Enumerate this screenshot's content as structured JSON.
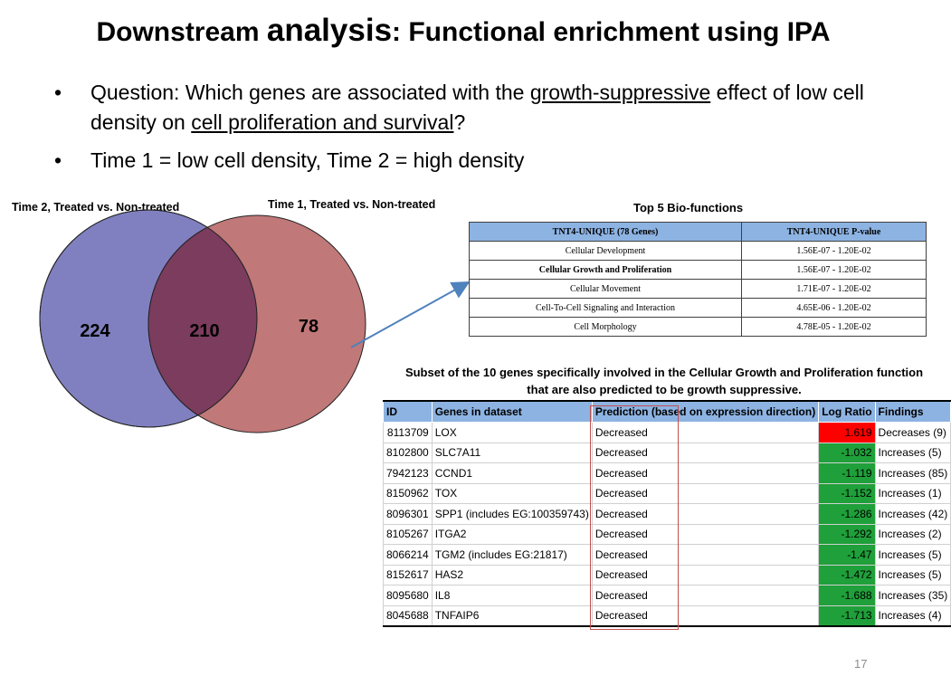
{
  "title": {
    "part1": "Downstream ",
    "part2": "analysis",
    "part3": ": Functional enrichment using IPA"
  },
  "bullets": {
    "b1": {
      "pre": "Question: Which genes are associated with the ",
      "u1": "growth-suppressive",
      "mid": " effect of low cell density on ",
      "u2": "cell proliferation and survival",
      "post": "?"
    },
    "b2": "Time 1 = low cell density, Time 2 = high density",
    "bullet_char": "•"
  },
  "venn": {
    "label_left": "Time 2, Treated vs. Non-treated",
    "label_right": "Time 1, Treated vs. Non-treated",
    "left_only": "224",
    "overlap": "210",
    "right_only": "78",
    "colors": {
      "left": "#8080c0",
      "right": "#c07878",
      "overlap": "#7b3c5e"
    }
  },
  "top5": {
    "caption": "Top 5 Bio-functions",
    "headers": [
      "TNT4-UNIQUE (78 Genes)",
      "TNT4-UNIQUE P-value"
    ],
    "rows": [
      [
        "Cellular Development",
        "1.56E-07 - 1.20E-02"
      ],
      [
        "Cellular Growth and Proliferation",
        "1.56E-07 - 1.20E-02"
      ],
      [
        "Cellular Movement",
        "1.71E-07 - 1.20E-02"
      ],
      [
        "Cell-To-Cell Signaling and Interaction",
        "4.65E-06 - 1.20E-02"
      ],
      [
        "Cell Morphology",
        "4.78E-05 - 1.20E-02"
      ]
    ],
    "bold_row_index": 1
  },
  "subset": {
    "caption": "Subset of the 10 genes specifically involved in the Cellular Growth and Proliferation function that are also predicted to be growth suppressive.",
    "headers": [
      "ID",
      "Genes in dataset",
      "Prediction (based on expression direction)",
      "Log Ratio",
      "Findings"
    ],
    "rows": [
      [
        "8113709",
        "LOX",
        "Decreased",
        "1.619",
        "Decreases (9)"
      ],
      [
        "8102800",
        "SLC7A11",
        "Decreased",
        "-1.032",
        "Increases (5)"
      ],
      [
        "7942123",
        "CCND1",
        "Decreased",
        "-1.119",
        "Increases (85)"
      ],
      [
        "8150962",
        "TOX",
        "Decreased",
        "-1.152",
        "Increases (1)"
      ],
      [
        "8096301",
        "SPP1 (includes EG:100359743)",
        "Decreased",
        "-1.286",
        "Increases (42)"
      ],
      [
        "8105267",
        "ITGA2",
        "Decreased",
        "-1.292",
        "Increases (2)"
      ],
      [
        "8066214",
        "TGM2 (includes EG:21817)",
        "Decreased",
        "-1.47",
        "Increases (5)"
      ],
      [
        "8152617",
        "HAS2",
        "Decreased",
        "-1.472",
        "Increases (5)"
      ],
      [
        "8095680",
        "IL8",
        "Decreased",
        "-1.688",
        "Increases (35)"
      ],
      [
        "8045688",
        "TNFAIP6",
        "Decreased",
        "-1.713",
        "Increases (4)"
      ]
    ],
    "colors": {
      "positive": "#ff0000",
      "negative": "#1fa03a",
      "header": "#8db3e2"
    }
  },
  "page_number": "17"
}
